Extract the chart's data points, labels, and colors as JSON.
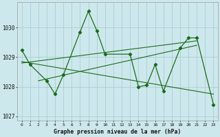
{
  "xlabel": "Graphe pression niveau de la mer (hPa)",
  "background_color": "#cde8ec",
  "grid_color": "#aacdd4",
  "line_color": "#1a6b1a",
  "x_values": [
    0,
    1,
    2,
    3,
    4,
    5,
    6,
    7,
    8,
    9,
    10,
    11,
    12,
    13,
    14,
    15,
    16,
    17,
    18,
    19,
    20,
    21,
    22,
    23
  ],
  "series1": [
    1029.25,
    1028.75,
    null,
    1028.2,
    1027.75,
    1028.4,
    null,
    1029.85,
    1030.55,
    1029.9,
    1029.1,
    null,
    null,
    1029.1,
    1028.0,
    1028.05,
    1028.75,
    1027.85,
    null,
    1029.3,
    1029.65,
    1029.65,
    null,
    1027.4
  ],
  "trend1_x": [
    0,
    21
  ],
  "trend1_y": [
    1028.8,
    1029.55
  ],
  "trend2_x": [
    0,
    23
  ],
  "trend2_y": [
    1028.85,
    1027.75
  ],
  "trend3_x": [
    2,
    21
  ],
  "trend3_y": [
    1028.2,
    1029.4
  ],
  "ylim": [
    1026.85,
    1030.85
  ],
  "yticks": [
    1027,
    1028,
    1029,
    1030
  ],
  "xlim": [
    -0.5,
    23.5
  ],
  "figsize": [
    3.2,
    2.0
  ],
  "dpi": 100
}
